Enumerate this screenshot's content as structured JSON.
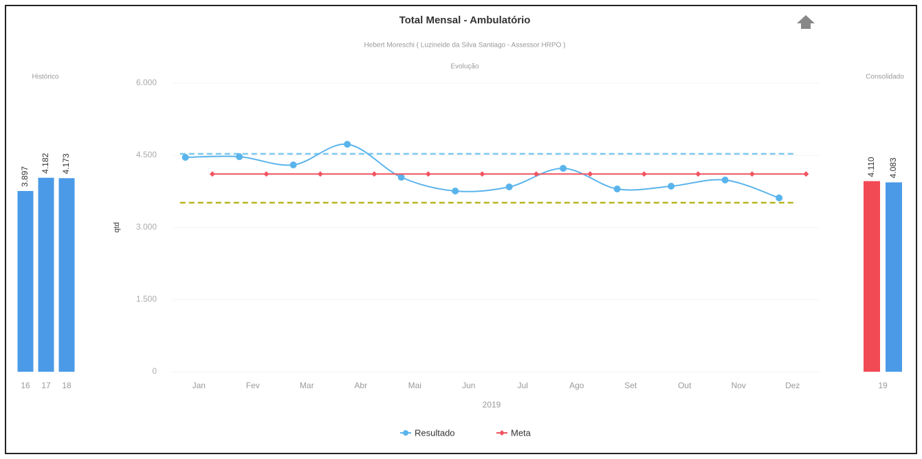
{
  "header": {
    "title": "Total Mensal - Ambulatório",
    "subtitle": "Hebert Moreschi ( Luzineide da Silva Santiago - Assessor HRPO )"
  },
  "chart_data": [
    {
      "type": "bar",
      "title": "Histórico",
      "categories": [
        "16",
        "17",
        "18"
      ],
      "series": [
        {
          "name": null,
          "color": "#4a9ae8",
          "values": [
            3897,
            4182,
            4173
          ],
          "value_labels": [
            "3.897",
            "4.182",
            "4.173"
          ]
        }
      ],
      "ylim": [
        0,
        6000
      ]
    },
    {
      "type": "line",
      "title": "Evolução",
      "x_label": "2019",
      "y_label": "qtd",
      "categories": [
        "Jan",
        "Fev",
        "Mar",
        "Abr",
        "Mai",
        "Jun",
        "Jul",
        "Ago",
        "Set",
        "Out",
        "Nov",
        "Dez"
      ],
      "series": [
        {
          "name": "Resultado",
          "color": "#5ab4ec",
          "values": [
            4457,
            4471,
            4300,
            4729,
            4043,
            3757,
            3843,
            4229,
            3800,
            3857,
            3986,
            3614
          ]
        },
        {
          "name": "Meta",
          "color": "#f0545f",
          "values": [
            4110,
            4110,
            4110,
            4110,
            4110,
            4110,
            4110,
            4110,
            4110,
            4110,
            4110,
            4110
          ]
        }
      ],
      "plot_lines": [
        {
          "value": 4530,
          "color": "#7cc8f0"
        },
        {
          "value": 3515,
          "color": "#b5b520"
        }
      ],
      "ylim": [
        0,
        6000
      ],
      "yticks": [
        0,
        {
          "value": 1500,
          "label": "1.500"
        },
        {
          "value": 3000,
          "label": "3.000"
        },
        {
          "value": 4500,
          "label": "4.500"
        },
        {
          "value": 6000,
          "label": "6.000"
        }
      ],
      "grid": true,
      "legend": "bottom"
    },
    {
      "type": "bar",
      "title": "Consolidado",
      "categories": [
        "19"
      ],
      "series": [
        {
          "name": "Meta",
          "color": "#f24a55",
          "values": [
            4110
          ],
          "value_labels": [
            "4.110"
          ]
        },
        {
          "name": "Resultado",
          "color": "#4a9ae8",
          "values": [
            4083
          ],
          "value_labels": [
            "4.083"
          ]
        }
      ],
      "ylim": [
        0,
        6000
      ]
    }
  ]
}
